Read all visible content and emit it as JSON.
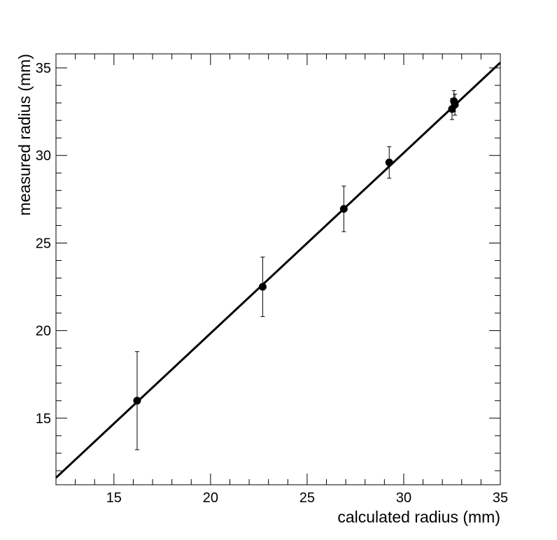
{
  "chart_data": {
    "type": "scatter",
    "title": "",
    "xlabel": "calculated radius (mm)",
    "ylabel": "measured radius (mm)",
    "xlim": [
      12,
      35
    ],
    "ylim": [
      11.2,
      35.8
    ],
    "xticks": [
      15,
      20,
      25,
      30,
      35
    ],
    "yticks": [
      15,
      20,
      25,
      30,
      35
    ],
    "grid": false,
    "legend": "none",
    "marker_color": "#000000",
    "series": [
      {
        "points": [
          {
            "x": 16.2,
            "y": 16.0,
            "yerr": 2.8
          },
          {
            "x": 22.7,
            "y": 22.5,
            "yerr": 1.7
          },
          {
            "x": 26.9,
            "y": 26.95,
            "yerr": 1.3
          },
          {
            "x": 29.25,
            "y": 29.6,
            "yerr": 0.9
          },
          {
            "x": 32.5,
            "y": 32.65,
            "yerr": 0.6
          },
          {
            "x": 32.65,
            "y": 32.9,
            "yerr": 0.6
          },
          {
            "x": 32.6,
            "y": 33.1,
            "yerr": 0.6
          }
        ]
      }
    ],
    "fit_line": {
      "x": [
        12,
        35
      ],
      "y": [
        11.6,
        35.3
      ]
    }
  }
}
